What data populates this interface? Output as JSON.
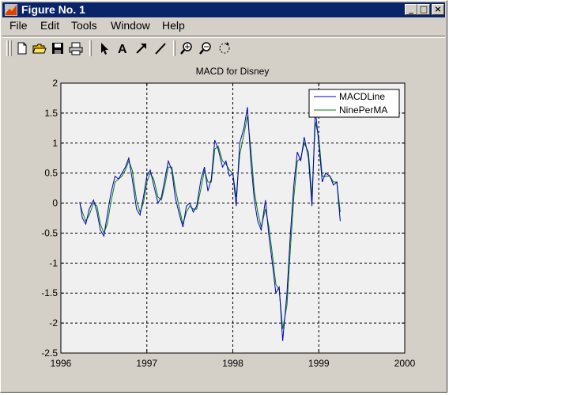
{
  "window": {
    "title": "Figure No. 1"
  },
  "window_controls": {
    "minimize": "_",
    "maximize": "□",
    "close": "×"
  },
  "menu": [
    "File",
    "Edit",
    "Tools",
    "Window",
    "Help"
  ],
  "toolbar": [
    "new-file-icon",
    "open-folder-icon",
    "save-icon",
    "print-icon",
    "select-arrow-icon",
    "text-icon",
    "draw-arrow-icon",
    "draw-line-icon",
    "zoom-in-icon",
    "zoom-out-icon",
    "rotate-3d-icon"
  ],
  "chart_data": {
    "type": "line",
    "title": "MACD for Disney",
    "xlabel": "",
    "ylabel": "",
    "xlim": [
      1996,
      2000
    ],
    "ylim": [
      -2.5,
      2
    ],
    "x_ticks": [
      "1996",
      "1997",
      "1998",
      "1999",
      "2000"
    ],
    "y_ticks": [
      "2",
      "1.5",
      "1",
      "0.5",
      "0",
      "-0.5",
      "-1",
      "-1.5",
      "-2",
      "-2.5"
    ],
    "grid": true,
    "legend_position": "top-right",
    "background": "#f0f0f0",
    "series": [
      {
        "name": "MACDLine",
        "color": "#0000c0",
        "x": [
          1996.22,
          1996.25,
          1996.29,
          1996.33,
          1996.38,
          1996.42,
          1996.46,
          1996.5,
          1996.54,
          1996.58,
          1996.63,
          1996.67,
          1996.71,
          1996.75,
          1996.79,
          1996.83,
          1996.88,
          1996.92,
          1996.96,
          1997.0,
          1997.04,
          1997.08,
          1997.13,
          1997.17,
          1997.21,
          1997.25,
          1997.29,
          1997.33,
          1997.38,
          1997.42,
          1997.46,
          1997.5,
          1997.54,
          1997.58,
          1997.63,
          1997.67,
          1997.71,
          1997.75,
          1997.79,
          1997.83,
          1997.88,
          1997.92,
          1997.96,
          1998.0,
          1998.04,
          1998.08,
          1998.13,
          1998.17,
          1998.21,
          1998.25,
          1998.29,
          1998.33,
          1998.38,
          1998.42,
          1998.46,
          1998.5,
          1998.54,
          1998.58,
          1998.63,
          1998.67,
          1998.71,
          1998.75,
          1998.79,
          1998.83,
          1998.88,
          1998.92,
          1998.96,
          1999.0,
          1999.04,
          1999.08,
          1999.13,
          1999.17,
          1999.21,
          1999.25
        ],
        "y": [
          0.02,
          -0.25,
          -0.35,
          -0.1,
          0.05,
          -0.15,
          -0.45,
          -0.55,
          -0.2,
          0.15,
          0.45,
          0.4,
          0.5,
          0.6,
          0.75,
          0.4,
          -0.1,
          -0.2,
          0.1,
          0.45,
          0.55,
          0.3,
          0.0,
          0.1,
          0.4,
          0.7,
          0.55,
          0.1,
          -0.2,
          -0.4,
          -0.05,
          0.0,
          -0.15,
          -0.05,
          0.4,
          0.6,
          0.2,
          0.4,
          1.05,
          0.9,
          0.6,
          0.7,
          0.45,
          0.5,
          -0.05,
          1.0,
          1.25,
          1.6,
          0.7,
          0.05,
          -0.3,
          -0.45,
          0.05,
          -0.55,
          -1.0,
          -1.5,
          -1.4,
          -2.3,
          -1.5,
          -0.5,
          0.3,
          0.85,
          0.7,
          1.1,
          0.75,
          -0.05,
          1.55,
          1.0,
          0.35,
          0.5,
          0.45,
          0.3,
          0.35,
          -0.3
        ]
      },
      {
        "name": "NinePerMA",
        "color": "#008000",
        "x": [
          1996.22,
          1996.25,
          1996.29,
          1996.33,
          1996.38,
          1996.42,
          1996.46,
          1996.5,
          1996.54,
          1996.58,
          1996.63,
          1996.67,
          1996.71,
          1996.75,
          1996.79,
          1996.83,
          1996.88,
          1996.92,
          1996.96,
          1997.0,
          1997.04,
          1997.08,
          1997.13,
          1997.17,
          1997.21,
          1997.25,
          1997.29,
          1997.33,
          1997.38,
          1997.42,
          1997.46,
          1997.5,
          1997.54,
          1997.58,
          1997.63,
          1997.67,
          1997.71,
          1997.75,
          1997.79,
          1997.83,
          1997.88,
          1997.92,
          1997.96,
          1998.0,
          1998.04,
          1998.08,
          1998.13,
          1998.17,
          1998.21,
          1998.25,
          1998.29,
          1998.33,
          1998.38,
          1998.42,
          1998.46,
          1998.5,
          1998.54,
          1998.58,
          1998.63,
          1998.67,
          1998.71,
          1998.75,
          1998.79,
          1998.83,
          1998.88,
          1998.92,
          1998.96,
          1999.0,
          1999.04,
          1999.08,
          1999.13,
          1999.17,
          1999.21,
          1999.25
        ],
        "y": [
          0.0,
          -0.15,
          -0.3,
          -0.2,
          0.0,
          -0.05,
          -0.35,
          -0.5,
          -0.35,
          0.0,
          0.35,
          0.4,
          0.45,
          0.55,
          0.7,
          0.55,
          0.05,
          -0.15,
          0.0,
          0.35,
          0.5,
          0.4,
          0.1,
          0.05,
          0.3,
          0.6,
          0.6,
          0.25,
          -0.1,
          -0.35,
          -0.15,
          -0.05,
          -0.1,
          -0.1,
          0.25,
          0.55,
          0.35,
          0.35,
          0.9,
          0.95,
          0.7,
          0.65,
          0.55,
          0.5,
          0.1,
          0.8,
          1.15,
          1.45,
          0.9,
          0.2,
          -0.15,
          -0.4,
          -0.1,
          -0.4,
          -0.85,
          -1.35,
          -1.45,
          -2.1,
          -1.7,
          -0.75,
          0.1,
          0.7,
          0.75,
          1.0,
          0.85,
          0.1,
          1.35,
          1.1,
          0.45,
          0.45,
          0.45,
          0.35,
          0.35,
          -0.15
        ]
      }
    ]
  }
}
